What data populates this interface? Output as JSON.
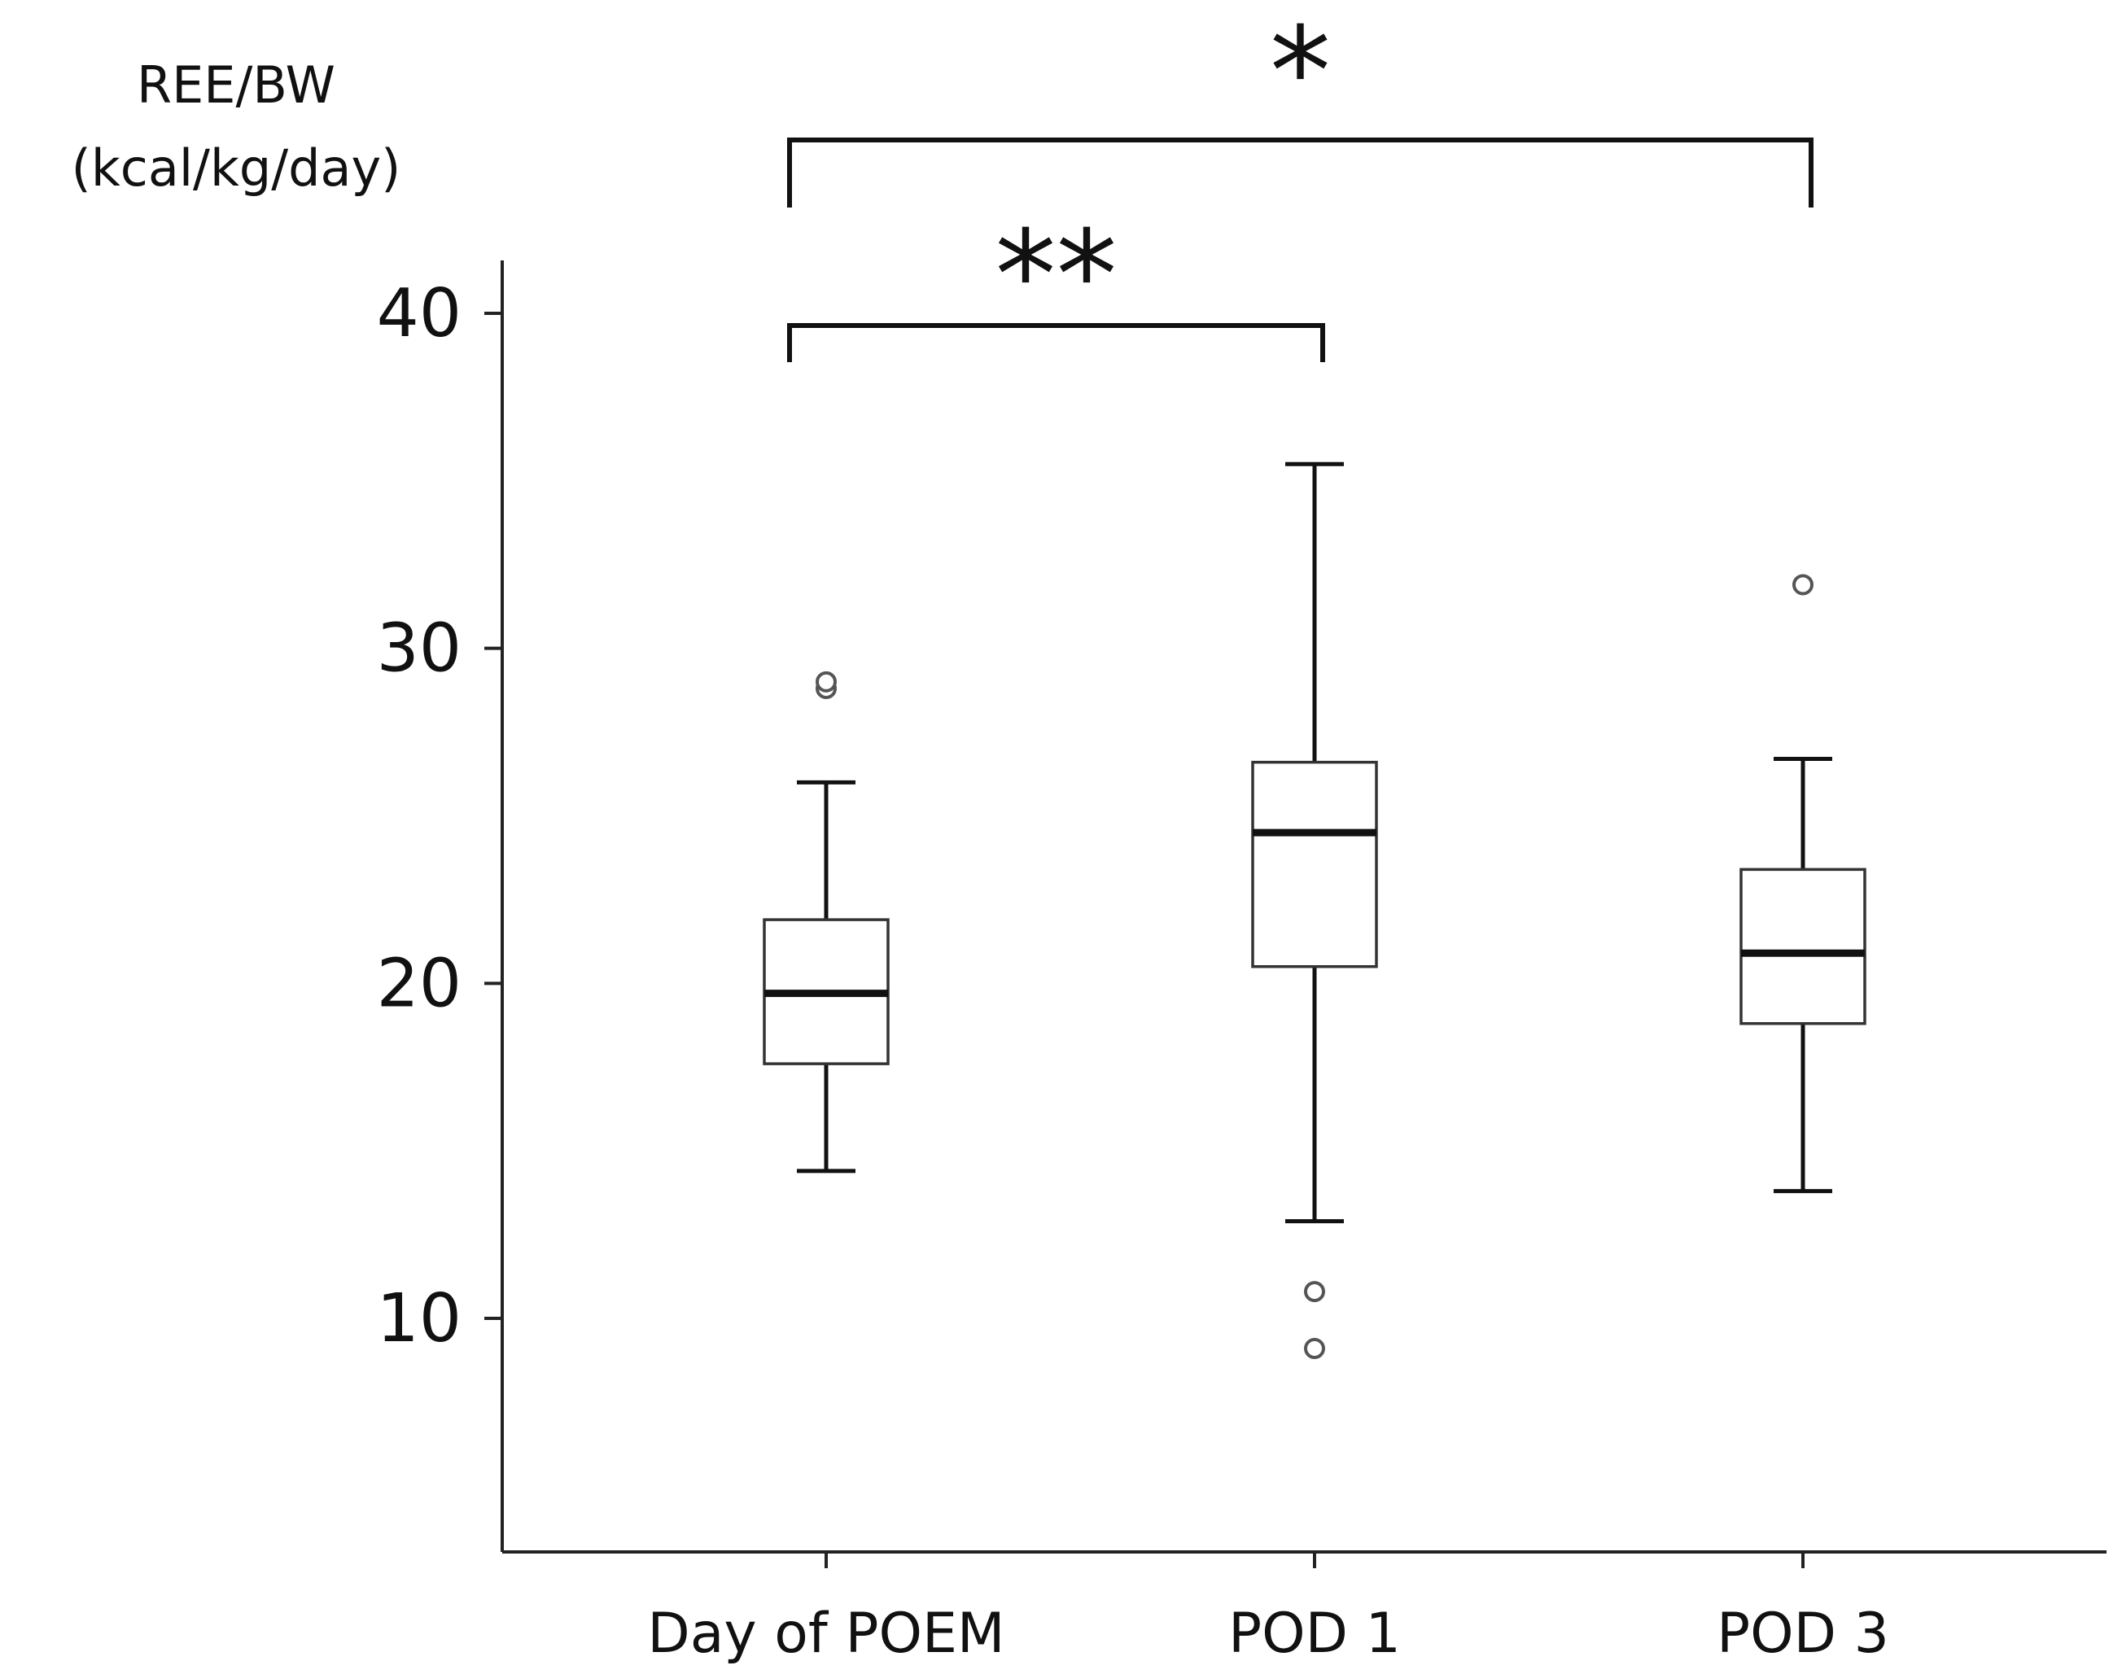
{
  "chart_data": {
    "type": "box",
    "ylabel_lines": [
      "REE/BW",
      "(kcal/kg/day)"
    ],
    "xlabel": "",
    "ylim": [
      3,
      42
    ],
    "yticks": [
      10,
      20,
      30,
      40
    ],
    "categories": [
      "Day of POEM",
      "POD 1",
      "POD 3"
    ],
    "boxes": [
      {
        "category": "Day of POEM",
        "whisker_low": 14.4,
        "q1": 17.6,
        "median": 19.7,
        "q3": 21.9,
        "whisker_high": 26.0,
        "outliers": [
          28.8,
          29.0
        ]
      },
      {
        "category": "POD 1",
        "whisker_low": 12.9,
        "q1": 20.5,
        "median": 24.5,
        "q3": 26.6,
        "whisker_high": 35.5,
        "outliers": [
          10.8,
          9.1
        ]
      },
      {
        "category": "POD 3",
        "whisker_low": 13.8,
        "q1": 18.8,
        "median": 20.9,
        "q3": 23.4,
        "whisker_high": 26.7,
        "outliers": [
          31.9
        ]
      }
    ],
    "significance": [
      {
        "from": "Day of POEM",
        "to": "POD 1",
        "label": "**"
      },
      {
        "from": "Day of POEM",
        "to": "POD 3",
        "label": "*"
      }
    ]
  }
}
